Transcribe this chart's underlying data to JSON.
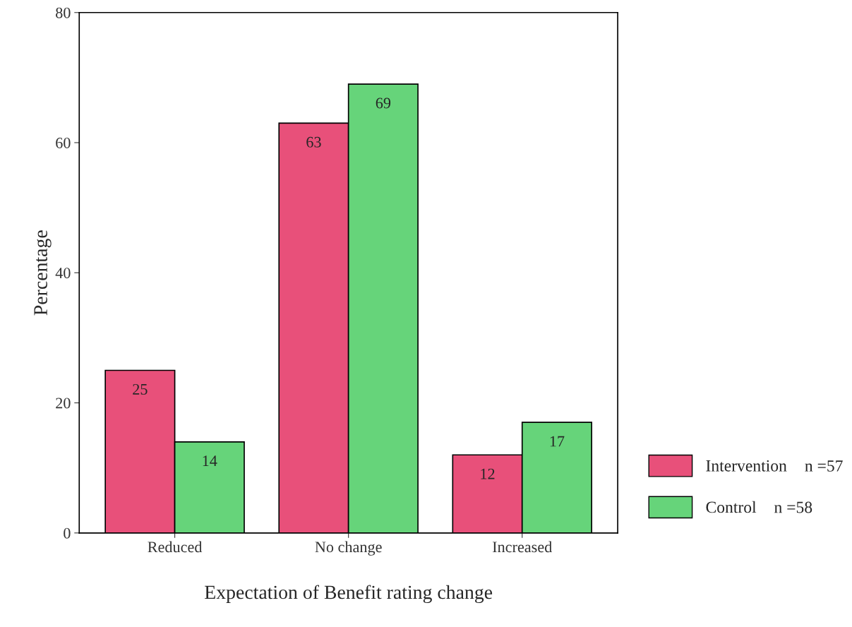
{
  "chart_data": {
    "type": "bar",
    "xlabel": "Expectation of Benefit rating change",
    "ylabel": "Percentage",
    "categories": [
      "Reduced",
      "No change",
      "Increased"
    ],
    "series": [
      {
        "name": "Intervention",
        "color": "#e8507a",
        "values": [
          25,
          63,
          12
        ]
      },
      {
        "name": "Control",
        "color": "#66d47a",
        "values": [
          14,
          69,
          17
        ]
      }
    ],
    "ylim": [
      0,
      80
    ],
    "yticks": [
      0,
      20,
      40,
      60,
      80
    ],
    "data_labels": true,
    "grid": false,
    "legend": "bottom right",
    "annotations": [
      "n =57",
      "n =58"
    ]
  }
}
